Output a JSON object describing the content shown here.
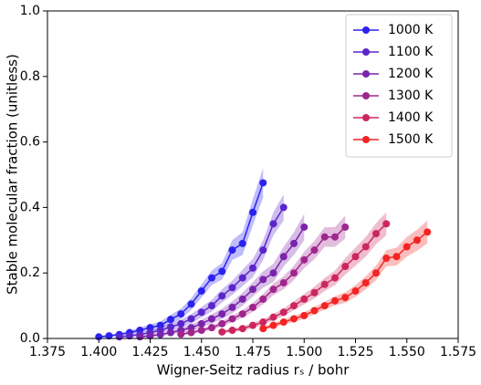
{
  "chart_data": {
    "type": "line",
    "x_label": "Wigner-Seitz radius rₛ / bohr",
    "y_label": "Stable molecular fraction (unitless)",
    "xlim": [
      1.375,
      1.575
    ],
    "xticks": [
      1.375,
      {
        "value": 1.4,
        "label": "1.400"
      },
      1.425,
      {
        "value": 1.45,
        "label": "1.450"
      },
      1.475,
      {
        "value": 1.5,
        "label": "1.500"
      },
      1.525,
      {
        "value": 1.55,
        "label": "1.550"
      },
      1.575
    ],
    "ylim": [
      0,
      1
    ],
    "yticks": [
      {
        "value": 0,
        "label": "0.0"
      },
      0.2,
      0.4,
      0.6,
      0.8,
      {
        "value": 1,
        "label": "1.0"
      }
    ],
    "legend": "upper right",
    "series": [
      {
        "name": "1000 K",
        "color": "#2b22ee",
        "x": [
          1.4,
          1.405,
          1.41,
          1.415,
          1.42,
          1.425,
          1.43,
          1.435,
          1.44,
          1.445,
          1.45,
          1.455,
          1.46,
          1.465,
          1.47,
          1.475,
          1.48
        ],
        "values": [
          0.005,
          0.008,
          0.012,
          0.018,
          0.025,
          0.033,
          0.04,
          0.058,
          0.075,
          0.105,
          0.145,
          0.185,
          0.205,
          0.27,
          0.29,
          0.385,
          0.475
        ],
        "errors": [
          0.003,
          0.004,
          0.005,
          0.006,
          0.008,
          0.01,
          0.012,
          0.014,
          0.016,
          0.018,
          0.02,
          0.022,
          0.025,
          0.03,
          0.035,
          0.04,
          0.045
        ]
      },
      {
        "name": "1100 K",
        "color": "#5a26cc",
        "x": [
          1.41,
          1.415,
          1.42,
          1.425,
          1.43,
          1.435,
          1.44,
          1.445,
          1.45,
          1.455,
          1.46,
          1.465,
          1.47,
          1.475,
          1.48,
          1.485,
          1.49
        ],
        "values": [
          0.005,
          0.008,
          0.012,
          0.018,
          0.025,
          0.035,
          0.045,
          0.06,
          0.08,
          0.1,
          0.13,
          0.155,
          0.185,
          0.215,
          0.27,
          0.35,
          0.4
        ],
        "errors": [
          0.003,
          0.004,
          0.005,
          0.006,
          0.008,
          0.01,
          0.012,
          0.014,
          0.016,
          0.018,
          0.02,
          0.022,
          0.025,
          0.028,
          0.03,
          0.035,
          0.04
        ]
      },
      {
        "name": "1200 K",
        "color": "#7a24ac",
        "x": [
          1.42,
          1.425,
          1.43,
          1.435,
          1.44,
          1.445,
          1.45,
          1.455,
          1.46,
          1.465,
          1.47,
          1.475,
          1.48,
          1.485,
          1.49,
          1.495,
          1.5
        ],
        "values": [
          0.005,
          0.008,
          0.012,
          0.018,
          0.025,
          0.033,
          0.045,
          0.06,
          0.075,
          0.095,
          0.12,
          0.15,
          0.18,
          0.2,
          0.25,
          0.29,
          0.34
        ],
        "errors": [
          0.003,
          0.004,
          0.005,
          0.006,
          0.008,
          0.01,
          0.012,
          0.014,
          0.016,
          0.018,
          0.02,
          0.022,
          0.025,
          0.028,
          0.03,
          0.035,
          0.04
        ]
      },
      {
        "name": "1300 K",
        "color": "#a0268e",
        "x": [
          1.44,
          1.445,
          1.45,
          1.455,
          1.46,
          1.465,
          1.47,
          1.475,
          1.48,
          1.485,
          1.49,
          1.495,
          1.5,
          1.505,
          1.51,
          1.515,
          1.52
        ],
        "values": [
          0.013,
          0.018,
          0.025,
          0.033,
          0.045,
          0.06,
          0.075,
          0.095,
          0.12,
          0.15,
          0.17,
          0.2,
          0.24,
          0.27,
          0.31,
          0.31,
          0.34
        ],
        "errors": [
          0.004,
          0.005,
          0.006,
          0.007,
          0.008,
          0.01,
          0.012,
          0.014,
          0.016,
          0.018,
          0.02,
          0.022,
          0.025,
          0.028,
          0.03,
          0.03,
          0.035
        ]
      },
      {
        "name": "1400 K",
        "color": "#cc2660",
        "x": [
          1.46,
          1.465,
          1.47,
          1.475,
          1.48,
          1.485,
          1.49,
          1.495,
          1.5,
          1.505,
          1.51,
          1.515,
          1.52,
          1.525,
          1.53,
          1.535,
          1.54
        ],
        "values": [
          0.02,
          0.025,
          0.03,
          0.04,
          0.05,
          0.065,
          0.08,
          0.1,
          0.12,
          0.14,
          0.165,
          0.185,
          0.22,
          0.25,
          0.28,
          0.32,
          0.35
        ],
        "errors": [
          0.005,
          0.006,
          0.007,
          0.008,
          0.009,
          0.01,
          0.012,
          0.014,
          0.016,
          0.018,
          0.02,
          0.022,
          0.025,
          0.028,
          0.03,
          0.032,
          0.035
        ]
      },
      {
        "name": "1500 K",
        "color": "#f22424",
        "x": [
          1.48,
          1.485,
          1.49,
          1.495,
          1.5,
          1.505,
          1.51,
          1.515,
          1.52,
          1.525,
          1.53,
          1.535,
          1.54,
          1.545,
          1.55,
          1.555,
          1.56
        ],
        "values": [
          0.03,
          0.04,
          0.05,
          0.06,
          0.07,
          0.085,
          0.1,
          0.115,
          0.125,
          0.145,
          0.17,
          0.2,
          0.245,
          0.25,
          0.28,
          0.3,
          0.325
        ],
        "errors": [
          0.006,
          0.007,
          0.008,
          0.009,
          0.01,
          0.011,
          0.012,
          0.014,
          0.016,
          0.018,
          0.02,
          0.022,
          0.025,
          0.027,
          0.03,
          0.032,
          0.035
        ]
      }
    ]
  }
}
